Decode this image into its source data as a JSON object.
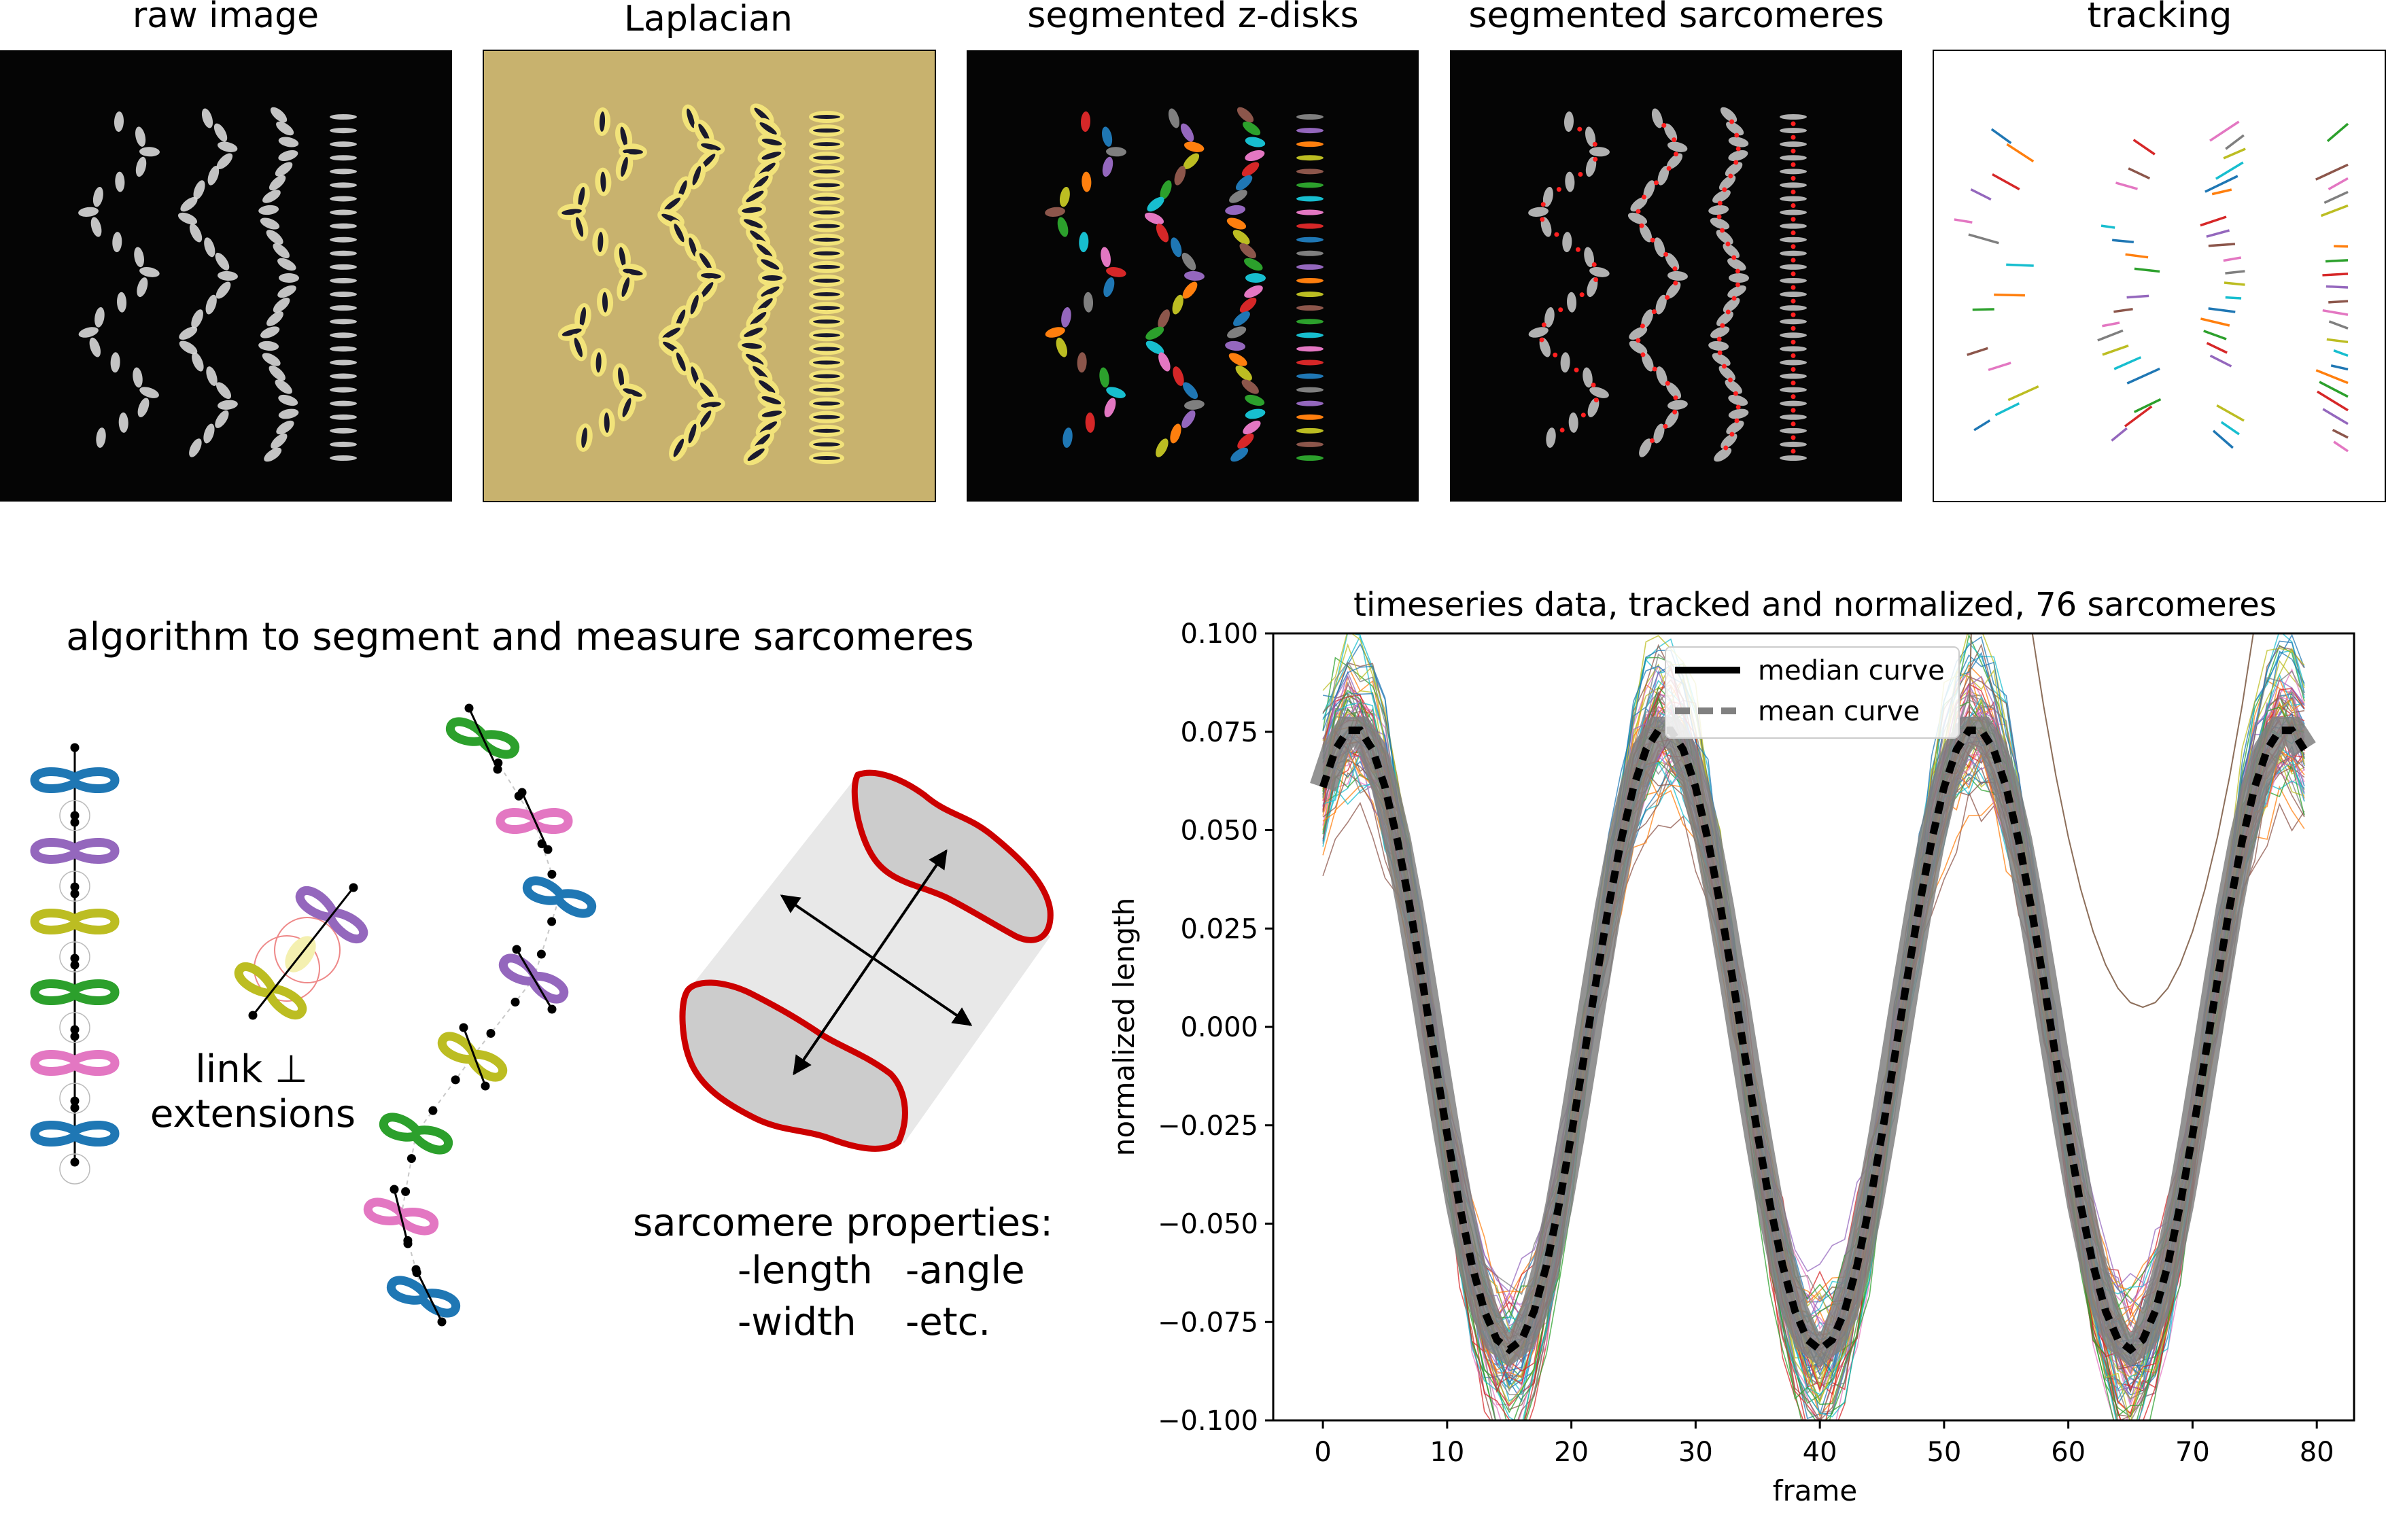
{
  "panels": {
    "raw_image": "raw image",
    "laplacian": "Laplacian",
    "zdisks": "segmented z-disks",
    "sarcomeres": "segmented sarcomeres",
    "tracking": "tracking"
  },
  "algorithm": {
    "title": "algorithm to segment and measure sarcomeres",
    "link_label_1": "link ⊥",
    "link_label_2": "extensions",
    "props_title": "sarcomere properties:",
    "prop_length": "-length",
    "prop_angle": "-angle",
    "prop_width": "-width",
    "prop_etc": "-etc."
  },
  "colors": {
    "blue": "#1f77b4",
    "orange": "#ff7f0e",
    "green": "#2ca02c",
    "red": "#d62728",
    "purple": "#9467bd",
    "brown": "#8c564b",
    "pink": "#e377c2",
    "olive": "#bcbd22",
    "cyan": "#17becf",
    "laplacian_bg": "#c8b26e",
    "outline_red": "#cc0000"
  },
  "chart_data": {
    "type": "line",
    "title": "timeseries data, tracked and normalized, 76 sarcomeres",
    "xlabel": "frame",
    "ylabel": "normalized length",
    "xlim": [
      -4,
      83
    ],
    "ylim": [
      -0.1,
      0.1
    ],
    "x_ticks": [
      "0",
      "10",
      "20",
      "30",
      "40",
      "50",
      "60",
      "70",
      "80"
    ],
    "y_ticks": [
      "0.100",
      "0.075",
      "0.050",
      "0.025",
      "0.000",
      "−0.025",
      "−0.050",
      "−0.075",
      "−0.100"
    ],
    "n_series": 76,
    "period_frames": 25,
    "peak_frames": [
      2.5,
      27.5,
      52.5,
      77.5
    ],
    "trough_frames": [
      15,
      40,
      65
    ],
    "peak_value": 0.076,
    "trough_value": -0.082,
    "series": [
      {
        "name": "median curve",
        "style": "solid",
        "color": "#000000",
        "x": [
          0,
          2.5,
          15,
          27.5,
          40,
          52.5,
          65,
          77.5,
          79
        ],
        "y": [
          0.071,
          0.076,
          -0.082,
          0.076,
          -0.082,
          0.076,
          -0.082,
          0.076,
          0.071
        ]
      },
      {
        "name": "mean curve",
        "style": "dashed",
        "color": "#808080",
        "x": [
          0,
          2.5,
          15,
          27.5,
          40,
          52.5,
          65,
          77.5,
          79
        ],
        "y": [
          0.071,
          0.075,
          -0.081,
          0.075,
          -0.081,
          0.075,
          -0.081,
          0.075,
          0.071
        ]
      }
    ],
    "outlier_min": 0.005,
    "legend": [
      "median curve",
      "mean curve"
    ],
    "legend_position": "upper-center",
    "grid": false
  }
}
